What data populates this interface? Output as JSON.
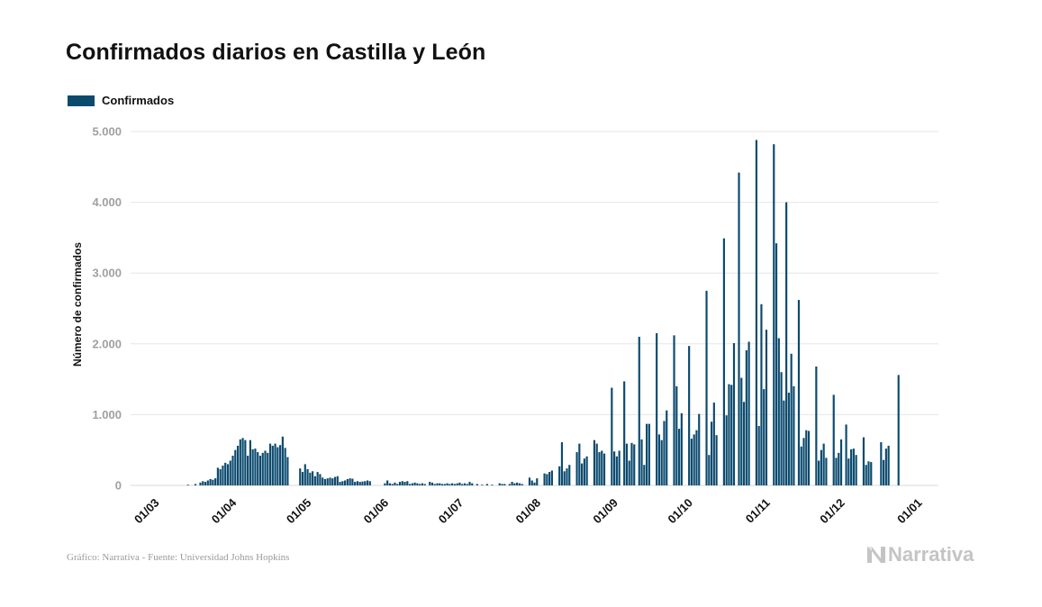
{
  "chart_data": {
    "type": "bar",
    "title": "Confirmados diarios en Castilla y León",
    "xlabel": "",
    "ylabel": "Número de confirmados",
    "legend": {
      "position": "top-left",
      "entries": [
        "Confirmados"
      ]
    },
    "grid": true,
    "ylim": [
      0,
      5000
    ],
    "y_ticks": [
      0,
      1000,
      2000,
      3000,
      4000,
      5000
    ],
    "y_tick_labels": [
      "0",
      "1.000",
      "2.000",
      "3.000",
      "4.000",
      "5.000"
    ],
    "x_tick_labels": [
      "01/03",
      "01/04",
      "01/05",
      "01/06",
      "01/07",
      "01/08",
      "01/09",
      "01/10",
      "01/11",
      "01/12",
      "01/01"
    ],
    "x_tick_dates": [
      "2020-03-01",
      "2020-04-01",
      "2020-05-01",
      "2020-06-01",
      "2020-07-01",
      "2020-08-01",
      "2020-09-01",
      "2020-10-01",
      "2020-11-01",
      "2020-12-01",
      "2021-01-01"
    ],
    "series": [
      {
        "name": "Confirmados",
        "color": "#0b4a6e",
        "points": [
          [
            "2020-03-13",
            10
          ],
          [
            "2020-03-16",
            20
          ],
          [
            "2020-03-18",
            40
          ],
          [
            "2020-03-19",
            60
          ],
          [
            "2020-03-20",
            50
          ],
          [
            "2020-03-21",
            70
          ],
          [
            "2020-03-22",
            90
          ],
          [
            "2020-03-23",
            80
          ],
          [
            "2020-03-24",
            100
          ],
          [
            "2020-03-25",
            250
          ],
          [
            "2020-03-26",
            230
          ],
          [
            "2020-03-27",
            280
          ],
          [
            "2020-03-28",
            320
          ],
          [
            "2020-03-29",
            300
          ],
          [
            "2020-03-30",
            350
          ],
          [
            "2020-03-31",
            420
          ],
          [
            "2020-04-01",
            500
          ],
          [
            "2020-04-02",
            560
          ],
          [
            "2020-04-03",
            650
          ],
          [
            "2020-04-04",
            670
          ],
          [
            "2020-04-05",
            640
          ],
          [
            "2020-04-06",
            420
          ],
          [
            "2020-04-07",
            640
          ],
          [
            "2020-04-08",
            510
          ],
          [
            "2020-04-09",
            520
          ],
          [
            "2020-04-10",
            470
          ],
          [
            "2020-04-11",
            420
          ],
          [
            "2020-04-12",
            460
          ],
          [
            "2020-04-13",
            490
          ],
          [
            "2020-04-14",
            460
          ],
          [
            "2020-04-15",
            590
          ],
          [
            "2020-04-16",
            560
          ],
          [
            "2020-04-17",
            590
          ],
          [
            "2020-04-18",
            540
          ],
          [
            "2020-04-19",
            570
          ],
          [
            "2020-04-20",
            690
          ],
          [
            "2020-04-21",
            530
          ],
          [
            "2020-04-22",
            400
          ],
          [
            "2020-04-27",
            240
          ],
          [
            "2020-04-28",
            190
          ],
          [
            "2020-04-29",
            300
          ],
          [
            "2020-04-30",
            230
          ],
          [
            "2020-05-01",
            180
          ],
          [
            "2020-05-02",
            200
          ],
          [
            "2020-05-03",
            130
          ],
          [
            "2020-05-04",
            190
          ],
          [
            "2020-05-05",
            160
          ],
          [
            "2020-05-06",
            110
          ],
          [
            "2020-05-07",
            90
          ],
          [
            "2020-05-08",
            100
          ],
          [
            "2020-05-09",
            110
          ],
          [
            "2020-05-10",
            100
          ],
          [
            "2020-05-11",
            120
          ],
          [
            "2020-05-12",
            130
          ],
          [
            "2020-05-13",
            50
          ],
          [
            "2020-05-14",
            60
          ],
          [
            "2020-05-15",
            70
          ],
          [
            "2020-05-16",
            90
          ],
          [
            "2020-05-17",
            100
          ],
          [
            "2020-05-18",
            95
          ],
          [
            "2020-05-19",
            50
          ],
          [
            "2020-05-20",
            60
          ],
          [
            "2020-05-21",
            50
          ],
          [
            "2020-05-22",
            55
          ],
          [
            "2020-05-23",
            60
          ],
          [
            "2020-05-24",
            70
          ],
          [
            "2020-05-25",
            60
          ],
          [
            "2020-05-31",
            30
          ],
          [
            "2020-06-01",
            70
          ],
          [
            "2020-06-02",
            30
          ],
          [
            "2020-06-03",
            20
          ],
          [
            "2020-06-04",
            40
          ],
          [
            "2020-06-05",
            20
          ],
          [
            "2020-06-06",
            50
          ],
          [
            "2020-06-07",
            60
          ],
          [
            "2020-06-08",
            50
          ],
          [
            "2020-06-09",
            60
          ],
          [
            "2020-06-10",
            20
          ],
          [
            "2020-06-11",
            30
          ],
          [
            "2020-06-12",
            40
          ],
          [
            "2020-06-13",
            30
          ],
          [
            "2020-06-14",
            20
          ],
          [
            "2020-06-15",
            30
          ],
          [
            "2020-06-16",
            20
          ],
          [
            "2020-06-18",
            50
          ],
          [
            "2020-06-19",
            40
          ],
          [
            "2020-06-20",
            20
          ],
          [
            "2020-06-21",
            30
          ],
          [
            "2020-06-22",
            30
          ],
          [
            "2020-06-23",
            20
          ],
          [
            "2020-06-24",
            20
          ],
          [
            "2020-06-25",
            30
          ],
          [
            "2020-06-26",
            20
          ],
          [
            "2020-06-27",
            30
          ],
          [
            "2020-06-28",
            20
          ],
          [
            "2020-06-29",
            30
          ],
          [
            "2020-06-30",
            40
          ],
          [
            "2020-07-01",
            20
          ],
          [
            "2020-07-02",
            30
          ],
          [
            "2020-07-03",
            20
          ],
          [
            "2020-07-04",
            50
          ],
          [
            "2020-07-05",
            30
          ],
          [
            "2020-07-07",
            20
          ],
          [
            "2020-07-09",
            10
          ],
          [
            "2020-07-11",
            20
          ],
          [
            "2020-07-13",
            10
          ],
          [
            "2020-07-16",
            30
          ],
          [
            "2020-07-17",
            20
          ],
          [
            "2020-07-18",
            20
          ],
          [
            "2020-07-20",
            20
          ],
          [
            "2020-07-21",
            50
          ],
          [
            "2020-07-22",
            30
          ],
          [
            "2020-07-23",
            40
          ],
          [
            "2020-07-24",
            30
          ],
          [
            "2020-07-25",
            20
          ],
          [
            "2020-07-28",
            110
          ],
          [
            "2020-07-29",
            70
          ],
          [
            "2020-07-30",
            40
          ],
          [
            "2020-07-31",
            100
          ],
          [
            "2020-08-03",
            170
          ],
          [
            "2020-08-04",
            160
          ],
          [
            "2020-08-05",
            190
          ],
          [
            "2020-08-06",
            210
          ],
          [
            "2020-08-09",
            270
          ],
          [
            "2020-08-10",
            610
          ],
          [
            "2020-08-11",
            200
          ],
          [
            "2020-08-12",
            240
          ],
          [
            "2020-08-13",
            290
          ],
          [
            "2020-08-16",
            470
          ],
          [
            "2020-08-17",
            590
          ],
          [
            "2020-08-18",
            310
          ],
          [
            "2020-08-19",
            380
          ],
          [
            "2020-08-20",
            410
          ],
          [
            "2020-08-23",
            640
          ],
          [
            "2020-08-24",
            590
          ],
          [
            "2020-08-25",
            470
          ],
          [
            "2020-08-26",
            490
          ],
          [
            "2020-08-27",
            450
          ],
          [
            "2020-08-30",
            1380
          ],
          [
            "2020-08-31",
            480
          ],
          [
            "2020-09-01",
            410
          ],
          [
            "2020-09-02",
            490
          ],
          [
            "2020-09-04",
            1470
          ],
          [
            "2020-09-05",
            590
          ],
          [
            "2020-09-06",
            350
          ],
          [
            "2020-09-07",
            600
          ],
          [
            "2020-09-08",
            580
          ],
          [
            "2020-09-10",
            2100
          ],
          [
            "2020-09-11",
            650
          ],
          [
            "2020-09-12",
            290
          ],
          [
            "2020-09-13",
            870
          ],
          [
            "2020-09-14",
            870
          ],
          [
            "2020-09-17",
            2150
          ],
          [
            "2020-09-18",
            720
          ],
          [
            "2020-09-19",
            640
          ],
          [
            "2020-09-20",
            910
          ],
          [
            "2020-09-21",
            1060
          ],
          [
            "2020-09-24",
            2120
          ],
          [
            "2020-09-25",
            1400
          ],
          [
            "2020-09-26",
            800
          ],
          [
            "2020-09-27",
            1020
          ],
          [
            "2020-09-30",
            1970
          ],
          [
            "2020-10-01",
            660
          ],
          [
            "2020-10-02",
            720
          ],
          [
            "2020-10-03",
            780
          ],
          [
            "2020-10-04",
            1010
          ],
          [
            "2020-10-07",
            2750
          ],
          [
            "2020-10-08",
            430
          ],
          [
            "2020-10-09",
            900
          ],
          [
            "2020-10-10",
            1170
          ],
          [
            "2020-10-11",
            710
          ],
          [
            "2020-10-14",
            3490
          ],
          [
            "2020-10-15",
            990
          ],
          [
            "2020-10-16",
            1430
          ],
          [
            "2020-10-17",
            1420
          ],
          [
            "2020-10-18",
            2010
          ],
          [
            "2020-10-20",
            4420
          ],
          [
            "2020-10-21",
            1520
          ],
          [
            "2020-10-22",
            1180
          ],
          [
            "2020-10-23",
            1910
          ],
          [
            "2020-10-24",
            2030
          ],
          [
            "2020-10-27",
            4880
          ],
          [
            "2020-10-28",
            840
          ],
          [
            "2020-10-29",
            2560
          ],
          [
            "2020-10-30",
            1360
          ],
          [
            "2020-10-31",
            2200
          ],
          [
            "2020-11-03",
            4820
          ],
          [
            "2020-11-04",
            3420
          ],
          [
            "2020-11-05",
            2080
          ],
          [
            "2020-11-06",
            1600
          ],
          [
            "2020-11-07",
            1200
          ],
          [
            "2020-11-08",
            4000
          ],
          [
            "2020-11-09",
            1310
          ],
          [
            "2020-11-10",
            1860
          ],
          [
            "2020-11-11",
            1400
          ],
          [
            "2020-11-13",
            2620
          ],
          [
            "2020-11-14",
            550
          ],
          [
            "2020-11-15",
            670
          ],
          [
            "2020-11-16",
            780
          ],
          [
            "2020-11-17",
            770
          ],
          [
            "2020-11-20",
            1680
          ],
          [
            "2020-11-21",
            350
          ],
          [
            "2020-11-22",
            500
          ],
          [
            "2020-11-23",
            590
          ],
          [
            "2020-11-24",
            390
          ],
          [
            "2020-11-27",
            1280
          ],
          [
            "2020-11-28",
            390
          ],
          [
            "2020-11-29",
            460
          ],
          [
            "2020-11-30",
            650
          ],
          [
            "2020-12-02",
            860
          ],
          [
            "2020-12-03",
            380
          ],
          [
            "2020-12-04",
            510
          ],
          [
            "2020-12-05",
            520
          ],
          [
            "2020-12-06",
            430
          ],
          [
            "2020-12-09",
            680
          ],
          [
            "2020-12-10",
            290
          ],
          [
            "2020-12-11",
            340
          ],
          [
            "2020-12-12",
            330
          ],
          [
            "2020-12-16",
            610
          ],
          [
            "2020-12-17",
            360
          ],
          [
            "2020-12-18",
            520
          ],
          [
            "2020-12-19",
            560
          ],
          [
            "2020-12-23",
            1560
          ]
        ]
      }
    ]
  },
  "legend_label": "Confirmados",
  "footer": {
    "source": "Gráfico: Narrativa - Fuente: Universidad Johns Hopkins",
    "brand": "Narrativa"
  },
  "colors": {
    "bar": "#0b4a6e",
    "grid": "#e6e6e6",
    "brand": "#c4c4c4"
  },
  "icons": {
    "brand_logo": "narrativa-n-logo-icon"
  }
}
